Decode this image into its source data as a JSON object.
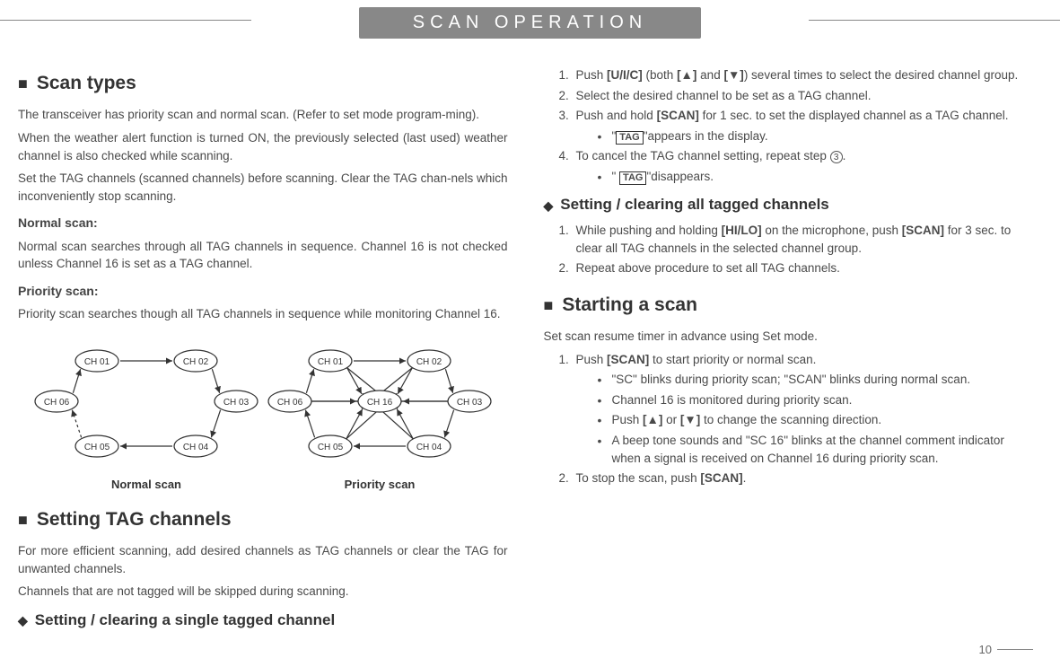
{
  "header": {
    "title": "SCAN OPERATION"
  },
  "left": {
    "scan_types": {
      "heading": "Scan types",
      "p1": "The transceiver has priority scan and normal scan. (Refer to set mode program-ming).",
      "p2": "When the weather alert function is turned ON, the previously selected (last used) weather channel is also checked while scanning.",
      "p3": "Set the TAG channels (scanned channels) before scanning. Clear the TAG chan-nels which inconveniently stop scanning.",
      "normal_h": "Normal scan:",
      "normal_p": "Normal scan searches through all TAG channels in sequence. Channel 16 is not checked unless Channel 16 is set as a TAG channel.",
      "priority_h": "Priority scan:",
      "priority_p": "Priority scan searches though all TAG channels in sequence while monitoring Channel 16."
    },
    "diagram": {
      "normal_label": "Normal scan",
      "priority_label": "Priority scan",
      "nodes_normal": [
        "CH 01",
        "CH 02",
        "CH 03",
        "CH 04",
        "CH 05",
        "CH 06"
      ],
      "nodes_priority": [
        "CH 01",
        "CH 02",
        "CH 03",
        "CH 04",
        "CH 05",
        "CH 06",
        "CH 16"
      ]
    },
    "setting_tag": {
      "heading": "Setting TAG channels",
      "p1": "For more efficient scanning, add desired channels as TAG channels or clear the TAG for unwanted channels.",
      "p2": "Channels that are not tagged will be skipped during scanning.",
      "sub1": "Setting / clearing a single tagged channel"
    }
  },
  "right": {
    "steps1": {
      "s1a": "Push ",
      "s1key": "[U/I/C]",
      "s1b": " (both ",
      "s1up": "[▲]",
      "s1c": " and ",
      "s1dn": "[▼]",
      "s1d": ") several times to select the desired channel group.",
      "s2": "Select the desired channel to be set as a TAG channel.",
      "s3a": "Push and hold ",
      "s3key": "[SCAN]",
      "s3b": " for 1 sec. to set the displayed channel as a TAG channel.",
      "s3bul_a": "\"",
      "s3bul_tag": "TAG",
      "s3bul_b": "\"appears in the display.",
      "s4a": "To cancel the TAG channel setting, repeat step ",
      "s4circ": "3",
      "s4b": ".",
      "s4bul_a": "\" ",
      "s4bul_tag": "TAG",
      "s4bul_b": "\"disappears."
    },
    "sub2": "Setting / clearing all tagged channels",
    "steps2": {
      "s1a": "While pushing and holding ",
      "s1k1": "[HI/LO]",
      "s1b": " on the microphone, push ",
      "s1k2": "[SCAN]",
      "s1c": " for 3 sec. to clear all TAG channels in the selected channel group.",
      "s2": " Repeat above procedure to set all TAG channels."
    },
    "starting": {
      "heading": "Starting a scan",
      "intro": "Set scan resume timer in advance using Set mode.",
      "s1a": "Push ",
      "s1key": "[SCAN]",
      "s1b": " to start priority or normal scan.",
      "b1": "\"SC\" blinks during priority scan; \"SCAN\" blinks during normal scan.",
      "b2": "Channel 16 is monitored during priority scan.",
      "b3a": "Push ",
      "b3up": "[▲]",
      "b3b": " or ",
      "b3dn": "[▼]",
      "b3c": " to change the scanning direction.",
      "b4": "A beep tone sounds and \"SC 16\" blinks at the channel comment indicator when a signal is received on Channel 16 during priority scan.",
      "s2a": "To stop the scan, push ",
      "s2key": "[SCAN]",
      "s2b": "."
    }
  },
  "page": "10"
}
